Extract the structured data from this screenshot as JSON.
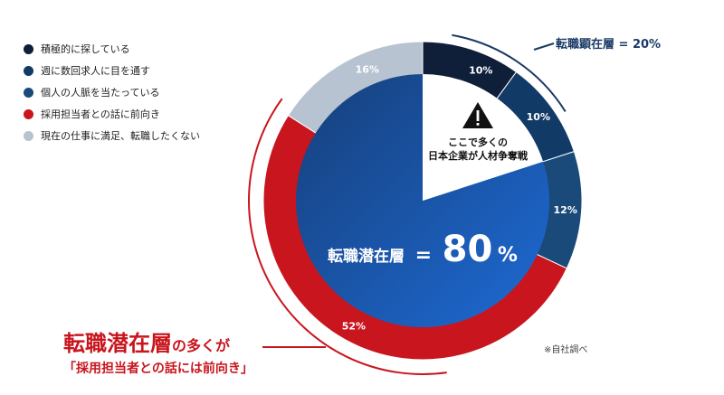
{
  "legend": [
    {
      "label": "積極的に探している",
      "color": "#0f1f3a"
    },
    {
      "label": "週に数回求人に目を通す",
      "color": "#123a66"
    },
    {
      "label": "個人の人脈を当たっている",
      "color": "#1a4a7a"
    },
    {
      "label": "採用担当者との話に前向き",
      "color": "#c9151e"
    },
    {
      "label": "現在の仕事に満足、転職したくない",
      "color": "#b8c3d1"
    }
  ],
  "chart_data": {
    "type": "pie",
    "categories": [
      "積極的に探している",
      "週に数回求人に目を通す",
      "個人の人脈を当たっている",
      "採用担当者との話に前向き",
      "現在の仕事に満足、転職したくない"
    ],
    "values": [
      10,
      10,
      12,
      52,
      16
    ],
    "value_labels": [
      "10%",
      "10%",
      "12%",
      "52%",
      "16%"
    ],
    "colors": [
      "#0f1f3a",
      "#123a66",
      "#1a4a7a",
      "#c9151e",
      "#b8c3d1"
    ]
  },
  "callouts": {
    "active_label": "転職顕在層 = 20%",
    "warning_line1": "ここで多くの",
    "warning_line2": "日本企業が人材争奪戦",
    "latent_prefix": "転職潜在層",
    "latent_equals": "=",
    "latent_value": "80",
    "latent_unit": "%"
  },
  "headline": {
    "big": "転職潜在層",
    "small": "の多くが",
    "sub": "「採用担当者との話には前向き」"
  },
  "note": "※自社調べ",
  "colors": {
    "accent_red": "#c9151e",
    "navy": "#1a3a66",
    "latent_blue_start": "#163f7a",
    "latent_blue_end": "#1e6ad4",
    "warning": "#111111"
  }
}
